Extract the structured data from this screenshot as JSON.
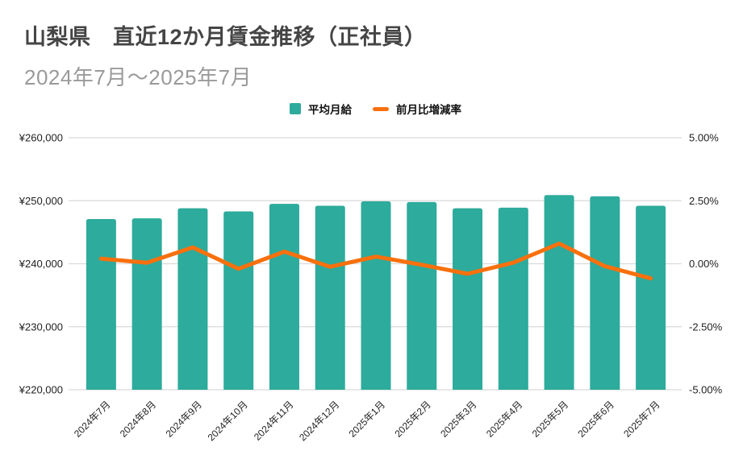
{
  "header": {
    "title": "山梨県　直近12か月賃金推移（正社員）",
    "subtitle": "2024年7月～2025年7月"
  },
  "legend": {
    "bar_label": "平均月給",
    "line_label": "前月比増減率"
  },
  "colors": {
    "bar": "#2DAB9C",
    "line": "#F8700D",
    "grid": "#DADADA",
    "axis_text": "#1F1F1F",
    "title": "#454545",
    "subtitle": "#9A9A9A",
    "background": "#FFFFFF"
  },
  "chart_data": {
    "type": "bar",
    "title": "山梨県　直近12か月賃金推移（正社員）",
    "subtitle": "2024年7月～2025年7月",
    "categories": [
      "2024年7月",
      "2024年8月",
      "2024年9月",
      "2024年10月",
      "2024年11月",
      "2024年12月",
      "2025年1月",
      "2025年2月",
      "2025年3月",
      "2025年4月",
      "2025年5月",
      "2025年6月",
      "2025年7月"
    ],
    "series": [
      {
        "name": "平均月給",
        "type": "bar",
        "axis": "left",
        "unit": "yen",
        "values": [
          247100,
          247200,
          248800,
          248300,
          249500,
          249200,
          249900,
          249800,
          248800,
          248900,
          250900,
          250700,
          249200
        ]
      },
      {
        "name": "前月比増減率",
        "type": "line",
        "axis": "right",
        "unit": "percent",
        "values": [
          0.2,
          0.04,
          0.65,
          -0.2,
          0.48,
          -0.12,
          0.28,
          -0.04,
          -0.4,
          0.04,
          0.8,
          -0.1,
          -0.58
        ]
      }
    ],
    "left_axis": {
      "range": [
        220000,
        260000
      ],
      "ticks": [
        220000,
        230000,
        240000,
        250000,
        260000
      ],
      "tick_labels": [
        "¥220,000",
        "¥230,000",
        "¥240,000",
        "¥250,000",
        "¥260,000"
      ]
    },
    "right_axis": {
      "range": [
        -5,
        5
      ],
      "ticks": [
        -5,
        -2.5,
        0,
        2.5,
        5
      ],
      "tick_labels": [
        "-5.00%",
        "-2.50%",
        "0.00%",
        "2.50%",
        "5.00%"
      ]
    },
    "legend_position": "top",
    "grid": true,
    "x_label_rotation": -45
  }
}
